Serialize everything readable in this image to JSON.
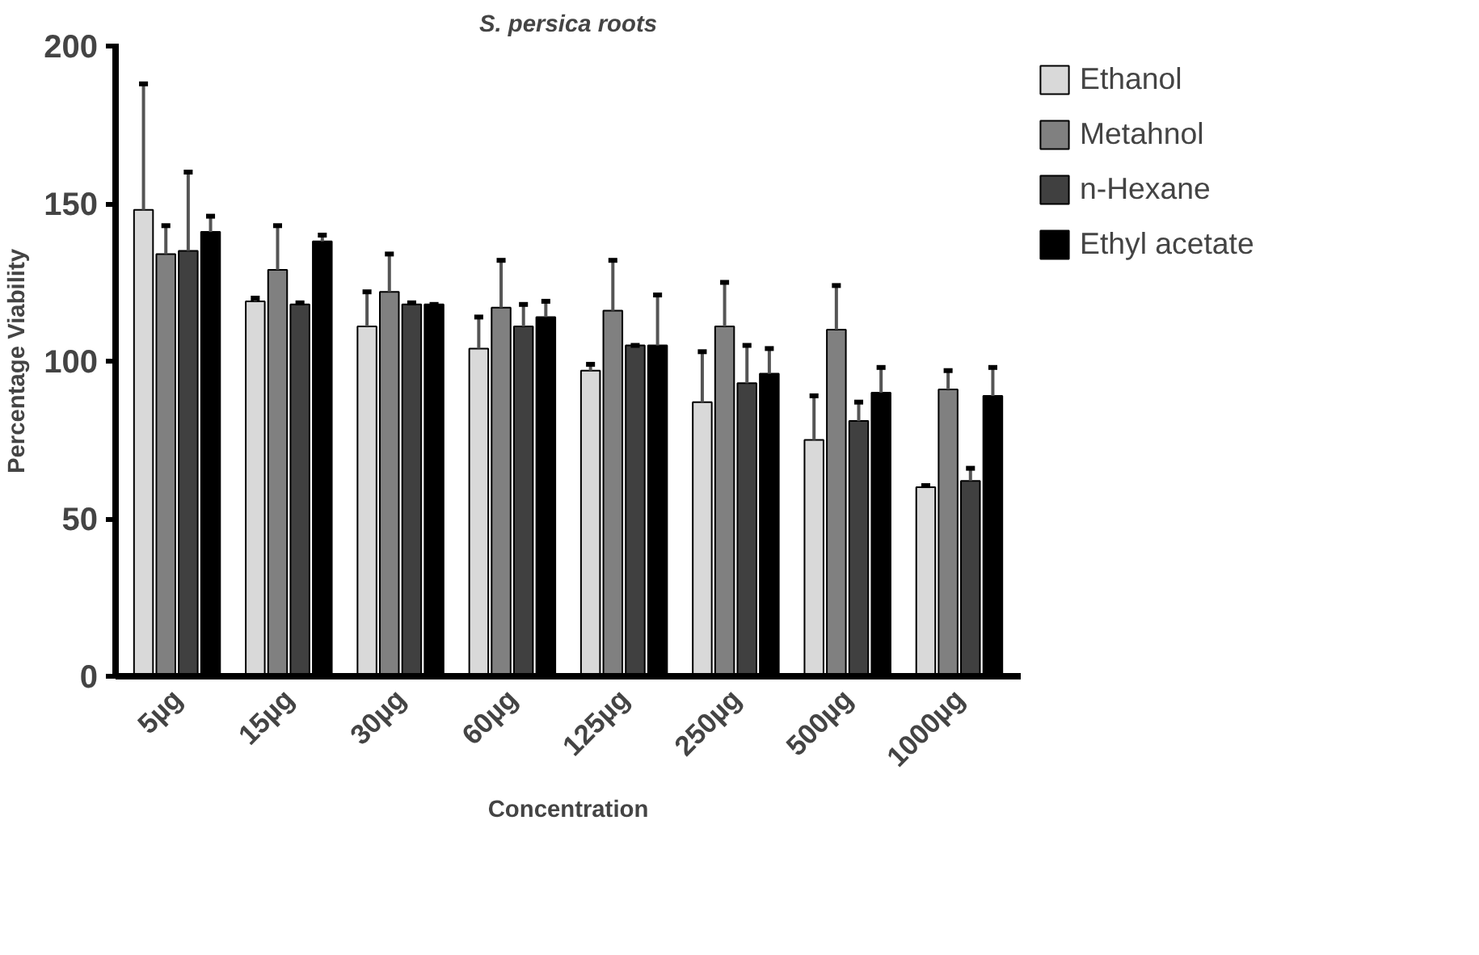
{
  "chart_data": {
    "type": "bar",
    "title": "S. persica roots",
    "xlabel": "Concentration",
    "ylabel": "Percentage Viability",
    "categories": [
      "5µg",
      "15µg",
      "30µg",
      "60µg",
      "125µg",
      "250µg",
      "500µg",
      "1000µg"
    ],
    "ylim": [
      0,
      200
    ],
    "yticks": [
      0,
      50,
      100,
      150,
      200
    ],
    "grid": false,
    "legend": "right",
    "series": [
      {
        "name": "Ethanol",
        "color": "#d9d9d9",
        "values": [
          148,
          119,
          111,
          104,
          97,
          87,
          75,
          60
        ],
        "errors": [
          [
            148,
            188
          ],
          [
            119,
            120
          ],
          [
            111,
            122
          ],
          [
            104,
            114
          ],
          [
            97,
            99
          ],
          [
            87,
            103
          ],
          [
            75,
            89
          ],
          [
            60,
            60.5
          ]
        ]
      },
      {
        "name": "Metahnol",
        "color": "#808080",
        "values": [
          134,
          129,
          122,
          117,
          116,
          111,
          110,
          91
        ],
        "errors": [
          [
            134,
            143
          ],
          [
            129,
            143
          ],
          [
            122,
            134
          ],
          [
            117,
            132
          ],
          [
            116,
            132
          ],
          [
            111,
            125
          ],
          [
            110,
            124
          ],
          [
            91,
            97
          ]
        ]
      },
      {
        "name": "n-Hexane",
        "color": "#404040",
        "values": [
          135,
          118,
          118,
          111,
          105,
          93,
          81,
          62
        ],
        "errors": [
          [
            135,
            160
          ],
          [
            118,
            118.5
          ],
          [
            118,
            118.5
          ],
          [
            111,
            118
          ],
          [
            105,
            105
          ],
          [
            93,
            105
          ],
          [
            81,
            87
          ],
          [
            62,
            66
          ]
        ]
      },
      {
        "name": "Ethyl acetate",
        "color": "#000000",
        "values": [
          141,
          138,
          118,
          114,
          105,
          96,
          90,
          89
        ],
        "errors": [
          [
            141,
            146
          ],
          [
            138,
            140
          ],
          [
            118,
            118
          ],
          [
            114,
            119
          ],
          [
            105,
            121
          ],
          [
            96,
            104
          ],
          [
            90,
            98
          ],
          [
            89,
            98
          ]
        ]
      }
    ]
  }
}
